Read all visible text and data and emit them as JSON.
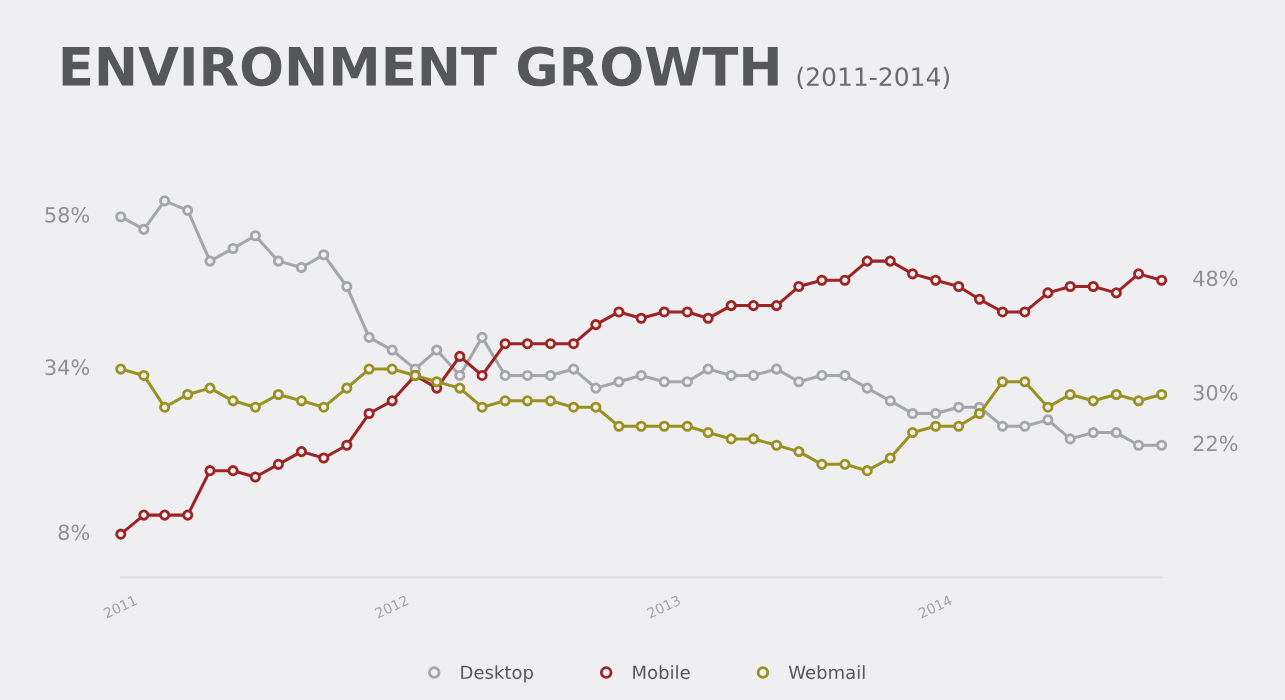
{
  "chart_data": {
    "type": "line",
    "title": "ENVIRONMENT GROWTH",
    "subtitle": "(2011-2014)",
    "x": [
      "2011-01",
      "2011-02",
      "2011-03",
      "2011-04",
      "2011-05",
      "2011-06",
      "2011-07",
      "2011-08",
      "2011-09",
      "2011-10",
      "2011-11",
      "2011-12",
      "2012-01",
      "2012-02",
      "2012-03",
      "2012-04",
      "2012-05",
      "2012-06",
      "2012-07",
      "2012-08",
      "2012-09",
      "2012-10",
      "2012-11",
      "2012-12",
      "2013-01",
      "2013-02",
      "2013-03",
      "2013-04",
      "2013-05",
      "2013-06",
      "2013-07",
      "2013-08",
      "2013-09",
      "2013-10",
      "2013-11",
      "2013-12",
      "2014-01",
      "2014-02",
      "2014-03",
      "2014-04",
      "2014-05",
      "2014-06",
      "2014-07",
      "2014-08",
      "2014-09",
      "2014-10",
      "2014-11"
    ],
    "series": [
      {
        "name": "Desktop",
        "color": "#a3a6aa",
        "values": [
          58,
          56,
          60.5,
          59,
          51,
          53,
          55,
          51,
          50,
          52,
          47,
          39,
          37,
          34,
          37,
          33,
          39,
          33,
          33,
          33,
          34,
          31,
          32,
          33,
          32,
          32,
          34,
          33,
          33,
          34,
          32,
          33,
          33,
          31,
          29,
          27,
          27,
          28,
          28,
          25,
          25,
          26,
          23,
          24,
          24,
          22,
          22
        ],
        "value_labels": [
          "58%",
          null,
          null,
          null,
          null,
          null,
          null,
          null,
          null,
          null,
          null,
          null,
          null,
          null,
          null,
          null,
          null,
          null,
          null,
          null,
          null,
          null,
          null,
          null,
          null,
          null,
          null,
          null,
          null,
          null,
          null,
          null,
          null,
          null,
          null,
          null,
          null,
          null,
          null,
          null,
          null,
          null,
          null,
          null,
          null,
          null,
          "22%"
        ]
      },
      {
        "name": "Mobile",
        "color": "#9e2424",
        "values": [
          8,
          11,
          11,
          11,
          18,
          18,
          17,
          19,
          21,
          20,
          22,
          27,
          29,
          33,
          31,
          36,
          33,
          38,
          38,
          38,
          38,
          41,
          43,
          42,
          43,
          43,
          42,
          44,
          44,
          44,
          47,
          48,
          48,
          51,
          51,
          49,
          48,
          47,
          45,
          43,
          43,
          46,
          47,
          47,
          46,
          49,
          48
        ],
        "value_labels": [
          "8%",
          null,
          null,
          null,
          null,
          null,
          null,
          null,
          null,
          null,
          null,
          null,
          null,
          null,
          null,
          null,
          null,
          null,
          null,
          null,
          null,
          null,
          null,
          null,
          null,
          null,
          null,
          null,
          null,
          null,
          null,
          null,
          null,
          null,
          null,
          null,
          null,
          null,
          null,
          null,
          null,
          null,
          null,
          null,
          null,
          null,
          "48%"
        ]
      },
      {
        "name": "Webmail",
        "color": "#999223",
        "values": [
          34,
          33,
          28,
          30,
          31,
          29,
          28,
          30,
          29,
          28,
          31,
          34,
          34,
          33,
          32,
          31,
          28,
          29,
          29,
          29,
          28,
          28,
          25,
          25,
          25,
          25,
          24,
          23,
          23,
          22,
          21,
          19,
          19,
          18,
          20,
          24,
          25,
          25,
          27,
          32,
          32,
          28,
          30,
          29,
          30,
          29,
          30
        ],
        "value_labels": [
          "34%",
          null,
          null,
          null,
          null,
          null,
          null,
          null,
          null,
          null,
          null,
          null,
          null,
          null,
          null,
          null,
          null,
          null,
          null,
          null,
          null,
          null,
          null,
          null,
          null,
          null,
          null,
          null,
          null,
          null,
          null,
          null,
          null,
          null,
          null,
          null,
          null,
          null,
          null,
          null,
          null,
          null,
          null,
          null,
          null,
          null,
          "30%"
        ]
      }
    ],
    "xlim": [
      "2011-01",
      "2014-11"
    ],
    "xticks": [
      {
        "value": "2011-01",
        "label": "2011"
      },
      {
        "value": "2012-01",
        "label": "2012"
      },
      {
        "value": "2013-01",
        "label": "2013"
      },
      {
        "value": "2014-01",
        "label": "2014"
      }
    ],
    "tick_labels": "x",
    "marker": "circle",
    "grid": false,
    "legend": "bottom"
  }
}
